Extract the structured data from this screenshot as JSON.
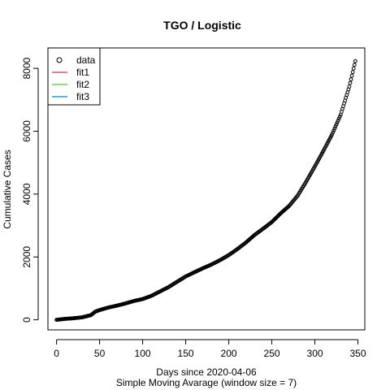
{
  "chart_data": {
    "type": "line",
    "title": "TGO / Logistic",
    "xlabel": "Days since 2020-04-06",
    "subtitle": "Simple Moving Avarage (window size = 7)",
    "ylabel": "Cumulative Cases",
    "xlim": [
      -10,
      358
    ],
    "ylim": [
      -320,
      8650
    ],
    "x_ticks": [
      0,
      50,
      100,
      150,
      200,
      250,
      300,
      350
    ],
    "x_tick_labels": [
      "0",
      "50",
      "100",
      "150",
      "200",
      "250",
      "300",
      "350"
    ],
    "y_ticks": [
      0,
      2000,
      4000,
      6000,
      8000
    ],
    "y_tick_labels": [
      "0",
      "2000",
      "4000",
      "6000",
      "8000"
    ],
    "legend": {
      "position": "top-left",
      "entries": [
        {
          "label": "data",
          "symbol": "circle",
          "color": "#000000"
        },
        {
          "label": "fit1",
          "symbol": "line",
          "color": "#DF536B"
        },
        {
          "label": "fit2",
          "symbol": "line",
          "color": "#61D04F"
        },
        {
          "label": "fit3",
          "symbol": "line",
          "color": "#2297E6"
        }
      ]
    },
    "series": [
      {
        "name": "data",
        "marker": "circle",
        "color": "#000000",
        "x_start": 0,
        "x_end": 347,
        "key_points": [
          [
            0,
            0
          ],
          [
            10,
            30
          ],
          [
            20,
            50
          ],
          [
            30,
            80
          ],
          [
            40,
            150
          ],
          [
            45,
            260
          ],
          [
            50,
            310
          ],
          [
            60,
            390
          ],
          [
            70,
            450
          ],
          [
            80,
            520
          ],
          [
            90,
            600
          ],
          [
            100,
            660
          ],
          [
            110,
            760
          ],
          [
            120,
            900
          ],
          [
            130,
            1040
          ],
          [
            140,
            1210
          ],
          [
            150,
            1380
          ],
          [
            160,
            1510
          ],
          [
            170,
            1640
          ],
          [
            180,
            1760
          ],
          [
            190,
            1900
          ],
          [
            200,
            2060
          ],
          [
            210,
            2250
          ],
          [
            220,
            2460
          ],
          [
            230,
            2700
          ],
          [
            240,
            2900
          ],
          [
            250,
            3110
          ],
          [
            260,
            3380
          ],
          [
            270,
            3620
          ],
          [
            280,
            3950
          ],
          [
            290,
            4400
          ],
          [
            300,
            4880
          ],
          [
            310,
            5380
          ],
          [
            320,
            5900
          ],
          [
            330,
            6530
          ],
          [
            340,
            7420
          ],
          [
            347,
            8230
          ]
        ]
      }
    ]
  }
}
